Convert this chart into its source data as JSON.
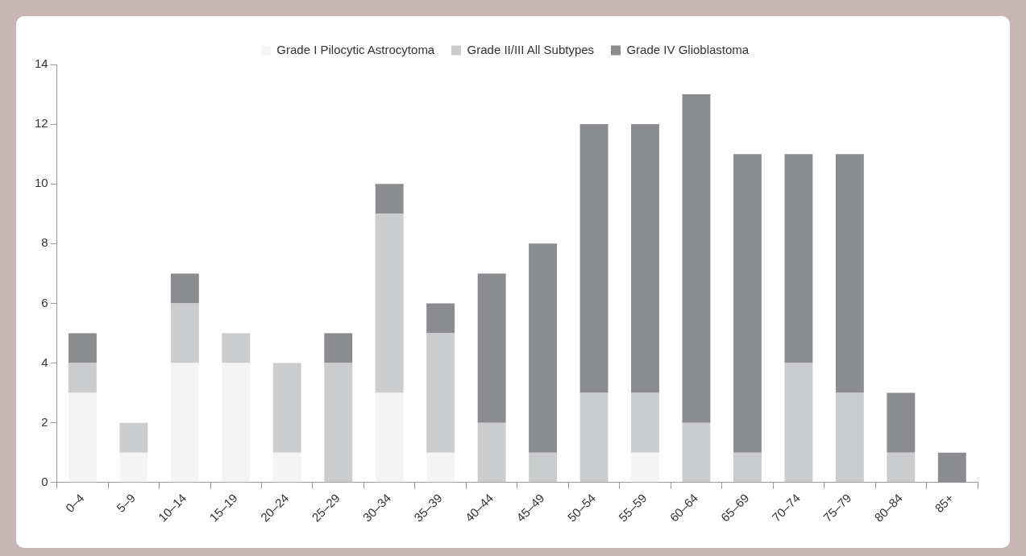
{
  "chart_data": {
    "type": "bar",
    "stacked": true,
    "legend": "top",
    "grid": false,
    "categories": [
      "0–4",
      "5–9",
      "10–14",
      "15–19",
      "20–24",
      "25–29",
      "30–34",
      "35–39",
      "40–44",
      "45–49",
      "50–54",
      "55–59",
      "60–64",
      "65–69",
      "70–74",
      "75–79",
      "80–84",
      "85+"
    ],
    "series": [
      {
        "name": "Grade I Pilocytic Astrocytoma",
        "color": "#f4f4f4",
        "values": [
          3,
          1,
          4,
          4,
          1,
          0,
          3,
          1,
          0,
          0,
          0,
          1,
          0,
          0,
          0,
          0,
          0,
          0
        ]
      },
      {
        "name": "Grade II/III All Subtypes",
        "color": "#cbcccd",
        "values": [
          1,
          1,
          2,
          1,
          3,
          4,
          6,
          4,
          2,
          1,
          3,
          2,
          2,
          1,
          4,
          3,
          1,
          0
        ]
      },
      {
        "name": "Grade IV Glioblastoma",
        "color": "#8b8c90",
        "values": [
          1,
          0,
          1,
          0,
          0,
          1,
          1,
          1,
          5,
          7,
          9,
          9,
          11,
          10,
          7,
          8,
          2,
          1
        ]
      }
    ],
    "ylim": [
      0,
      14
    ],
    "yticks": [
      0,
      2,
      4,
      6,
      8,
      10,
      12,
      14
    ]
  }
}
